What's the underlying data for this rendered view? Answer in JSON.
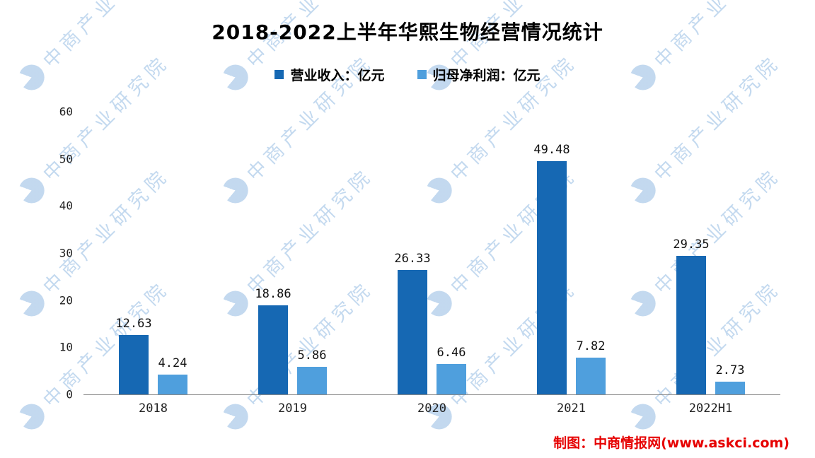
{
  "title": "2018-2022上半年华熙生物经营情况统计",
  "chart_data": {
    "type": "bar",
    "title": "2018-2022上半年华熙生物经营情况统计",
    "categories": [
      "2018",
      "2019",
      "2020",
      "2021",
      "2022H1"
    ],
    "series": [
      {
        "name": "营业收入：亿元",
        "color": "#1668b3",
        "values": [
          12.63,
          18.86,
          26.33,
          49.48,
          29.35
        ]
      },
      {
        "name": "归母净利润：亿元",
        "color": "#4f9fdd",
        "values": [
          4.24,
          5.86,
          6.46,
          7.82,
          2.73
        ]
      }
    ],
    "xlabel": "",
    "ylabel": "",
    "ylim": [
      0,
      60
    ],
    "yticks": [
      0,
      10,
      20,
      30,
      40,
      50,
      60
    ],
    "grid": false,
    "legend_position": "top"
  },
  "watermark": {
    "text": "中商产业研究院",
    "color": "#7aaadb"
  },
  "footer": {
    "credit": "制图：中商情报网(www.askci.com)",
    "color": "#e60000"
  },
  "axis": {
    "line_color": "#8a8a8a"
  }
}
